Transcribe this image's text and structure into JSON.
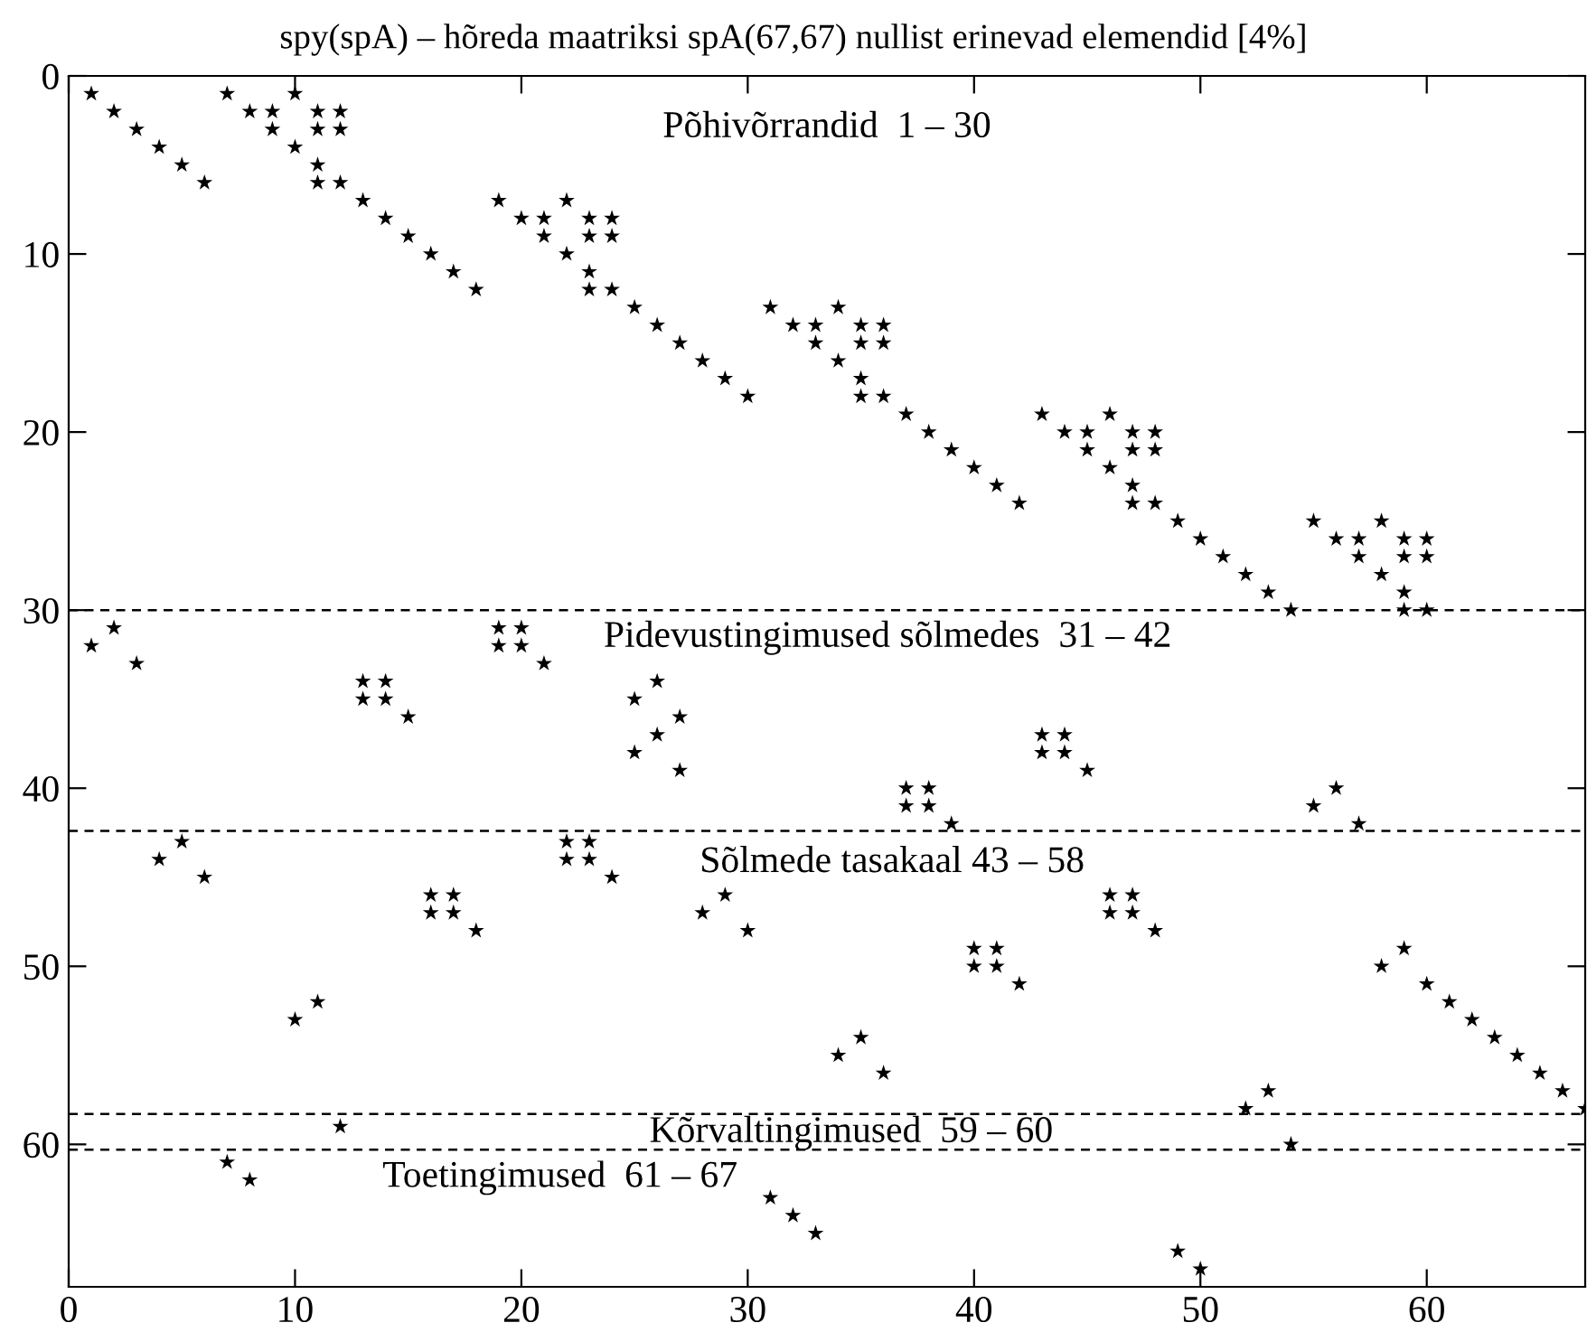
{
  "chart_data": {
    "type": "scatter",
    "title": "spy(spA) – hõreda maatriksi spA(67,67) nullist erinevad elemendid [4%]",
    "x": [
      1,
      2,
      3,
      4,
      5,
      6,
      7,
      8,
      9,
      9,
      10,
      10,
      11,
      11,
      11,
      11,
      12,
      12,
      12,
      13,
      14,
      15,
      16,
      17,
      18,
      19,
      20,
      21,
      21,
      22,
      22,
      23,
      23,
      24,
      24,
      23,
      23,
      24,
      25,
      26,
      27,
      28,
      29,
      30,
      31,
      32,
      33,
      33,
      34,
      34,
      35,
      35,
      36,
      36,
      35,
      35,
      36,
      37,
      38,
      39,
      40,
      41,
      42,
      43,
      44,
      45,
      45,
      46,
      46,
      47,
      47,
      48,
      48,
      47,
      47,
      48,
      49,
      50,
      51,
      52,
      53,
      54,
      55,
      56,
      57,
      57,
      58,
      58,
      59,
      59,
      60,
      60,
      59,
      59,
      60,
      1,
      2,
      3,
      13,
      13,
      14,
      14,
      15,
      19,
      19,
      20,
      20,
      21,
      25,
      26,
      25,
      26,
      27,
      27,
      37,
      37,
      38,
      38,
      39,
      43,
      43,
      44,
      44,
      45,
      55,
      56,
      57,
      4,
      5,
      6,
      16,
      16,
      17,
      17,
      18,
      22,
      22,
      23,
      23,
      24,
      28,
      29,
      30,
      40,
      40,
      41,
      41,
      42,
      46,
      46,
      47,
      47,
      48,
      10,
      11,
      34,
      35,
      36,
      58,
      59,
      60,
      61,
      62,
      63,
      64,
      65,
      66,
      67,
      52,
      53,
      12,
      54,
      7,
      8,
      31,
      32,
      33,
      49,
      50
    ],
    "values": [
      1,
      2,
      3,
      4,
      5,
      6,
      1,
      2,
      2,
      3,
      1,
      4,
      2,
      3,
      5,
      6,
      2,
      3,
      6,
      7,
      8,
      9,
      10,
      11,
      12,
      7,
      8,
      8,
      9,
      7,
      10,
      8,
      9,
      8,
      9,
      11,
      12,
      12,
      13,
      14,
      15,
      16,
      17,
      18,
      13,
      14,
      14,
      15,
      13,
      16,
      14,
      15,
      14,
      15,
      17,
      18,
      18,
      19,
      20,
      21,
      22,
      23,
      24,
      19,
      20,
      20,
      21,
      19,
      22,
      20,
      21,
      20,
      21,
      23,
      24,
      24,
      25,
      26,
      27,
      28,
      29,
      30,
      25,
      26,
      26,
      27,
      25,
      28,
      26,
      27,
      26,
      27,
      29,
      30,
      30,
      32,
      31,
      33,
      34,
      35,
      34,
      35,
      36,
      31,
      32,
      31,
      32,
      33,
      35,
      34,
      38,
      37,
      36,
      39,
      40,
      41,
      40,
      41,
      42,
      37,
      38,
      37,
      38,
      39,
      41,
      40,
      42,
      44,
      43,
      45,
      46,
      47,
      46,
      47,
      48,
      43,
      44,
      43,
      44,
      45,
      47,
      46,
      48,
      49,
      50,
      49,
      50,
      51,
      46,
      47,
      46,
      47,
      48,
      53,
      52,
      55,
      54,
      56,
      50,
      49,
      51,
      52,
      53,
      54,
      55,
      56,
      57,
      58,
      58,
      57,
      59,
      60,
      61,
      62,
      63,
      64,
      65,
      66,
      67
    ],
    "color": "#000000",
    "marker": "star",
    "xlim": [
      0,
      67
    ],
    "ylim": [
      68,
      0
    ],
    "xticks": [
      0,
      10,
      20,
      30,
      40,
      50,
      60
    ],
    "yticks": [
      0,
      10,
      20,
      30,
      40,
      50,
      60
    ],
    "ref_lines": [
      {
        "axis": "y",
        "value": 30,
        "line_style": "dashed",
        "color": "#000000"
      },
      {
        "axis": "y",
        "value": 42.4,
        "line_style": "dashed",
        "color": "#000000"
      },
      {
        "axis": "y",
        "value": 58.3,
        "line_style": "dashed",
        "color": "#000000"
      },
      {
        "axis": "y",
        "value": 60.3,
        "line_style": "dashed",
        "color": "#000000"
      }
    ],
    "annotations": [
      "Põhivõrrandid  1 – 30",
      "Pidevustingimused sõlmedes  31 – 42",
      "Sõlmede tasakaal 43 – 58",
      "Kõrvaltingimused  59 – 60",
      "Toetingimused  61 – 67"
    ]
  }
}
